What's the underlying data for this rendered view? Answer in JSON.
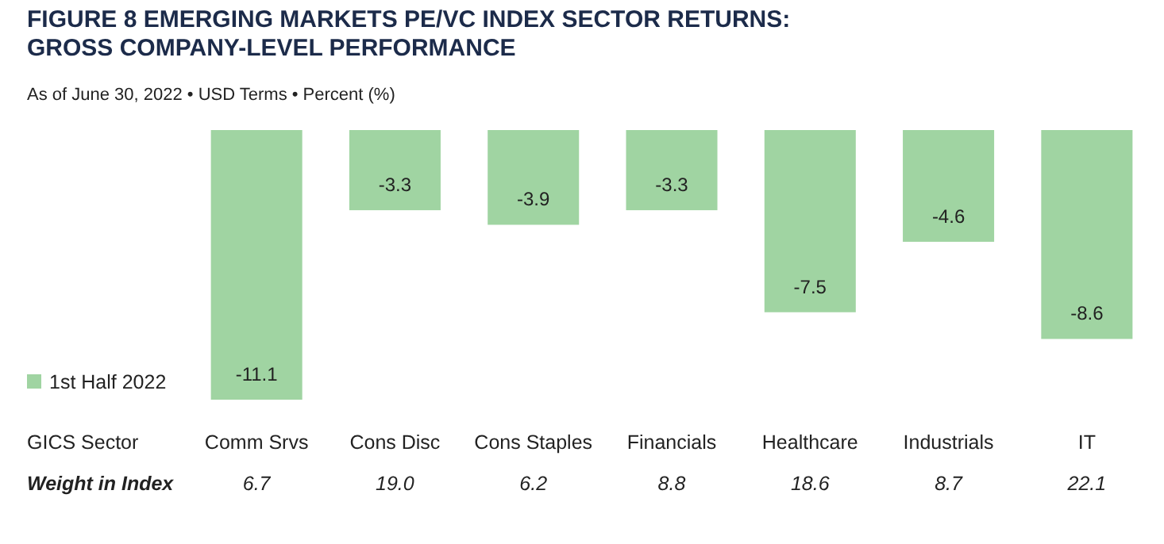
{
  "chart_data": {
    "type": "bar",
    "title": "FIGURE 8  EMERGING MARKETS PE/VC INDEX SECTOR RETURNS:\nGROSS COMPANY-LEVEL PERFORMANCE",
    "subtitle": "As of June 30, 2022 • USD Terms • Percent (%)",
    "xlabel": "GICS Sector",
    "categories": [
      "Comm Srvs",
      "Cons Disc",
      "Cons Staples",
      "Financials",
      "Healthcare",
      "Industrials",
      "IT"
    ],
    "series": [
      {
        "name": "1st Half 2022",
        "color": "#a0d4a2",
        "values": [
          -11.1,
          -3.3,
          -3.9,
          -3.3,
          -7.5,
          -4.6,
          -8.6
        ]
      }
    ],
    "data_labels": true,
    "legend": "bottom left",
    "annotations": [
      "Weight in Index",
      "6.7",
      "19.0",
      "6.2",
      "8.8",
      "18.6",
      "8.7",
      "22.1"
    ]
  }
}
